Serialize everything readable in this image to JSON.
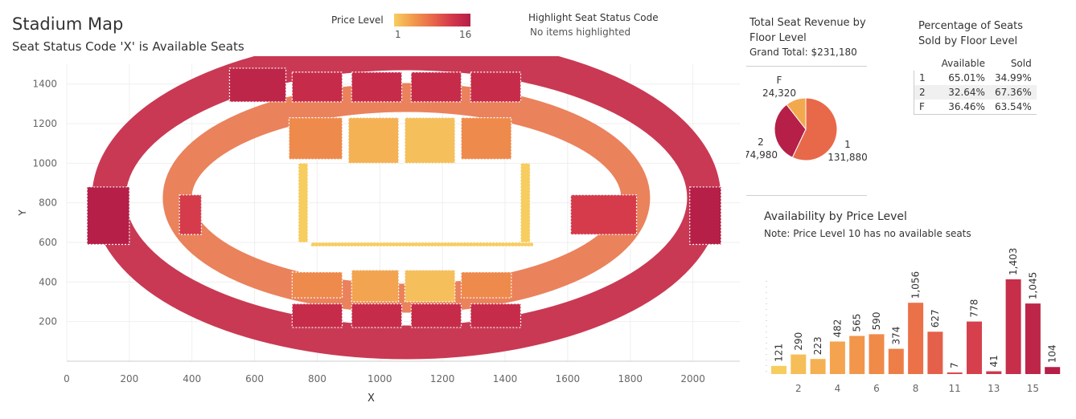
{
  "header": {
    "title": "Stadium Map",
    "subtitle": "Seat Status Code 'X' is Available Seats"
  },
  "legend": {
    "label": "Price Level",
    "min": "1",
    "max": "16",
    "gradient_colors": [
      "#f7cd60",
      "#f19a4c",
      "#e8694a",
      "#d4384b",
      "#b51f48"
    ]
  },
  "highlight": {
    "title": "Highlight Seat Status Code",
    "value": "No items highlighted"
  },
  "revenue": {
    "title": "Total Seat Revenue by Floor Level",
    "grand_total": "Grand Total: $231,180"
  },
  "percentage": {
    "title": "Percentage of Seats Sold by Floor Level",
    "columns": [
      "",
      "Available",
      "Sold"
    ],
    "rows": [
      {
        "floor": "1",
        "available": "65.01%",
        "sold": "34.99%"
      },
      {
        "floor": "2",
        "available": "32.64%",
        "sold": "67.36%"
      },
      {
        "floor": "F",
        "available": "36.46%",
        "sold": "63.54%"
      }
    ]
  },
  "availability": {
    "title": "Availability by Price Level",
    "note": "Note: Price Level 10 has no available seats"
  },
  "chart_data": [
    {
      "type": "scatter",
      "title": "Stadium Map",
      "subtitle": "Seat Status Code 'X' is Available Seats",
      "xlabel": "X",
      "ylabel": "Y",
      "xlim": [
        0,
        2150
      ],
      "ylim": [
        0,
        1500
      ],
      "x_ticks": [
        0,
        200,
        400,
        600,
        800,
        1000,
        1200,
        1400,
        1600,
        1800,
        2000
      ],
      "y_ticks": [
        200,
        400,
        600,
        800,
        1000,
        1200,
        1400
      ],
      "color_by": "Price Level",
      "color_range": [
        1,
        16
      ],
      "sections": [
        {
          "x": [
            520,
            700
          ],
          "y": [
            1310,
            1480
          ],
          "level": 15
        },
        {
          "x": [
            720,
            880
          ],
          "y": [
            1310,
            1460
          ],
          "level": 14
        },
        {
          "x": [
            910,
            1070
          ],
          "y": [
            1310,
            1460
          ],
          "level": 14
        },
        {
          "x": [
            1100,
            1260
          ],
          "y": [
            1310,
            1460
          ],
          "level": 14
        },
        {
          "x": [
            1290,
            1450
          ],
          "y": [
            1310,
            1460
          ],
          "level": 14
        },
        {
          "x": [
            710,
            880
          ],
          "y": [
            1020,
            1230
          ],
          "level": 6
        },
        {
          "x": [
            900,
            1060
          ],
          "y": [
            1000,
            1230
          ],
          "level": 3
        },
        {
          "x": [
            1080,
            1240
          ],
          "y": [
            1000,
            1230
          ],
          "level": 2
        },
        {
          "x": [
            1260,
            1420
          ],
          "y": [
            1020,
            1230
          ],
          "level": 6
        },
        {
          "x": [
            720,
            880
          ],
          "y": [
            320,
            450
          ],
          "level": 6
        },
        {
          "x": [
            910,
            1060
          ],
          "y": [
            300,
            460
          ],
          "level": 4
        },
        {
          "x": [
            1080,
            1240
          ],
          "y": [
            300,
            460
          ],
          "level": 2
        },
        {
          "x": [
            1260,
            1420
          ],
          "y": [
            320,
            450
          ],
          "level": 6
        },
        {
          "x": [
            720,
            880
          ],
          "y": [
            170,
            290
          ],
          "level": 14
        },
        {
          "x": [
            910,
            1070
          ],
          "y": [
            170,
            290
          ],
          "level": 14
        },
        {
          "x": [
            1100,
            1260
          ],
          "y": [
            170,
            290
          ],
          "level": 14
        },
        {
          "x": [
            1290,
            1450
          ],
          "y": [
            170,
            290
          ],
          "level": 14
        },
        {
          "x": [
            65,
            200
          ],
          "y": [
            590,
            880
          ],
          "level": 16
        },
        {
          "x": [
            1990,
            2090
          ],
          "y": [
            590,
            880
          ],
          "level": 16
        },
        {
          "x": [
            1610,
            1820
          ],
          "y": [
            640,
            840
          ],
          "level": 12
        },
        {
          "x": [
            360,
            430
          ],
          "y": [
            640,
            840
          ],
          "level": 12
        },
        {
          "x": [
            780,
            1490
          ],
          "y": [
            580,
            600
          ],
          "level": 1
        },
        {
          "x": [
            740,
            770
          ],
          "y": [
            600,
            1000
          ],
          "level": 1
        },
        {
          "x": [
            1450,
            1480
          ],
          "y": [
            600,
            1000
          ],
          "level": 1
        }
      ]
    },
    {
      "type": "pie",
      "title": "Total Seat Revenue by Floor Level",
      "subtitle": "Grand Total: $231,180",
      "categories": [
        "1",
        "2",
        "F"
      ],
      "values": [
        131880,
        74980,
        24320
      ],
      "colors": [
        "#e8694a",
        "#b51f48",
        "#f4a84e"
      ]
    },
    {
      "type": "table",
      "title": "Percentage of Seats Sold by Floor Level",
      "columns": [
        "",
        "Available",
        "Sold"
      ],
      "rows": [
        [
          "1",
          "65.01%",
          "34.99%"
        ],
        [
          "2",
          "32.64%",
          "67.36%"
        ],
        [
          "F",
          "36.46%",
          "63.54%"
        ]
      ]
    },
    {
      "type": "bar",
      "title": "Availability by Price Level",
      "subtitle": "Note: Price Level 10 has no available seats",
      "categories": [
        1,
        2,
        3,
        4,
        5,
        6,
        7,
        8,
        9,
        11,
        12,
        13,
        14,
        15,
        16
      ],
      "values": [
        121,
        290,
        223,
        482,
        565,
        590,
        374,
        1056,
        627,
        7,
        778,
        41,
        1403,
        1045,
        104
      ],
      "data_labels": [
        "121",
        "290",
        "223",
        "482",
        "565",
        "590",
        "374",
        "1,056",
        "627",
        "7",
        "778",
        "41",
        "1,403",
        "1,045",
        "104"
      ],
      "x_tick_labels": [
        "2",
        "4",
        "6",
        "8",
        "11",
        "13",
        "15"
      ],
      "colors": [
        "#f7cd60",
        "#f6be58",
        "#f5b053",
        "#f4a34e",
        "#f2964b",
        "#ef8a48",
        "#ed7e47",
        "#ea7148",
        "#e4604b",
        "#db4b4c",
        "#d5404c",
        "#ce374b",
        "#c62e4a",
        "#be2649",
        "#b51f48"
      ]
    }
  ]
}
